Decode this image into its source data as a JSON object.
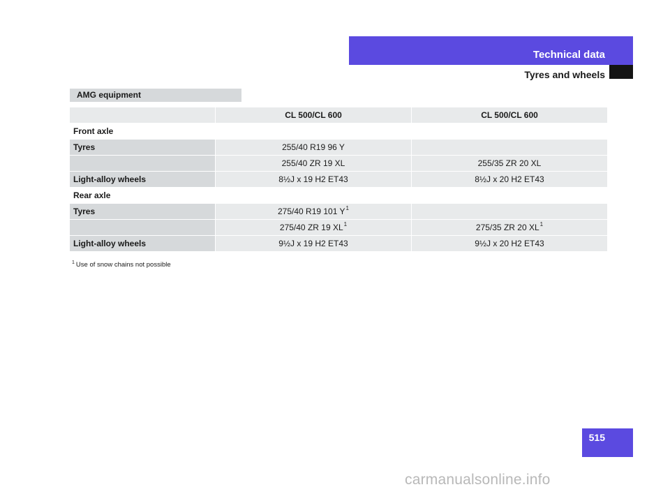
{
  "colors": {
    "accent": "#5b4ae0",
    "tab_black": "#141414"
  },
  "header": {
    "section": "Technical data",
    "title": "Tyres and wheels"
  },
  "section_label": "AMG equipment",
  "table": {
    "columns": [
      "",
      "CL 500/CL 600",
      "CL 500/CL 600"
    ],
    "front_axle_label": "Front axle",
    "front": [
      {
        "label": "Tyres",
        "col1": "255/40 R19 96 Y",
        "col2": ""
      },
      {
        "label": "",
        "col1": "255/40 ZR 19 XL",
        "col2": "255/35 ZR 20 XL"
      },
      {
        "label": "Light-alloy wheels",
        "col1": "8½J x 19 H2 ET43",
        "col2": "8½J x 20 H2 ET43"
      }
    ],
    "rear_axle_label": "Rear axle",
    "rear": [
      {
        "label": "Tyres",
        "col1": "275/40 R19 101 Y",
        "col1_sup": "1",
        "col2": ""
      },
      {
        "label": "",
        "col1": "275/40 ZR 19 XL",
        "col1_sup": "1",
        "col2": "275/35 ZR 20 XL",
        "col2_sup": "1"
      },
      {
        "label": "Light-alloy wheels",
        "col1": "9½J x 19 H2 ET43",
        "col2": "9½J x 20 H2 ET43"
      }
    ]
  },
  "footnote": {
    "marker": "1",
    "text": "Use of snow chains not possible"
  },
  "page_number": "515",
  "watermark": "carmanualsonline.info"
}
